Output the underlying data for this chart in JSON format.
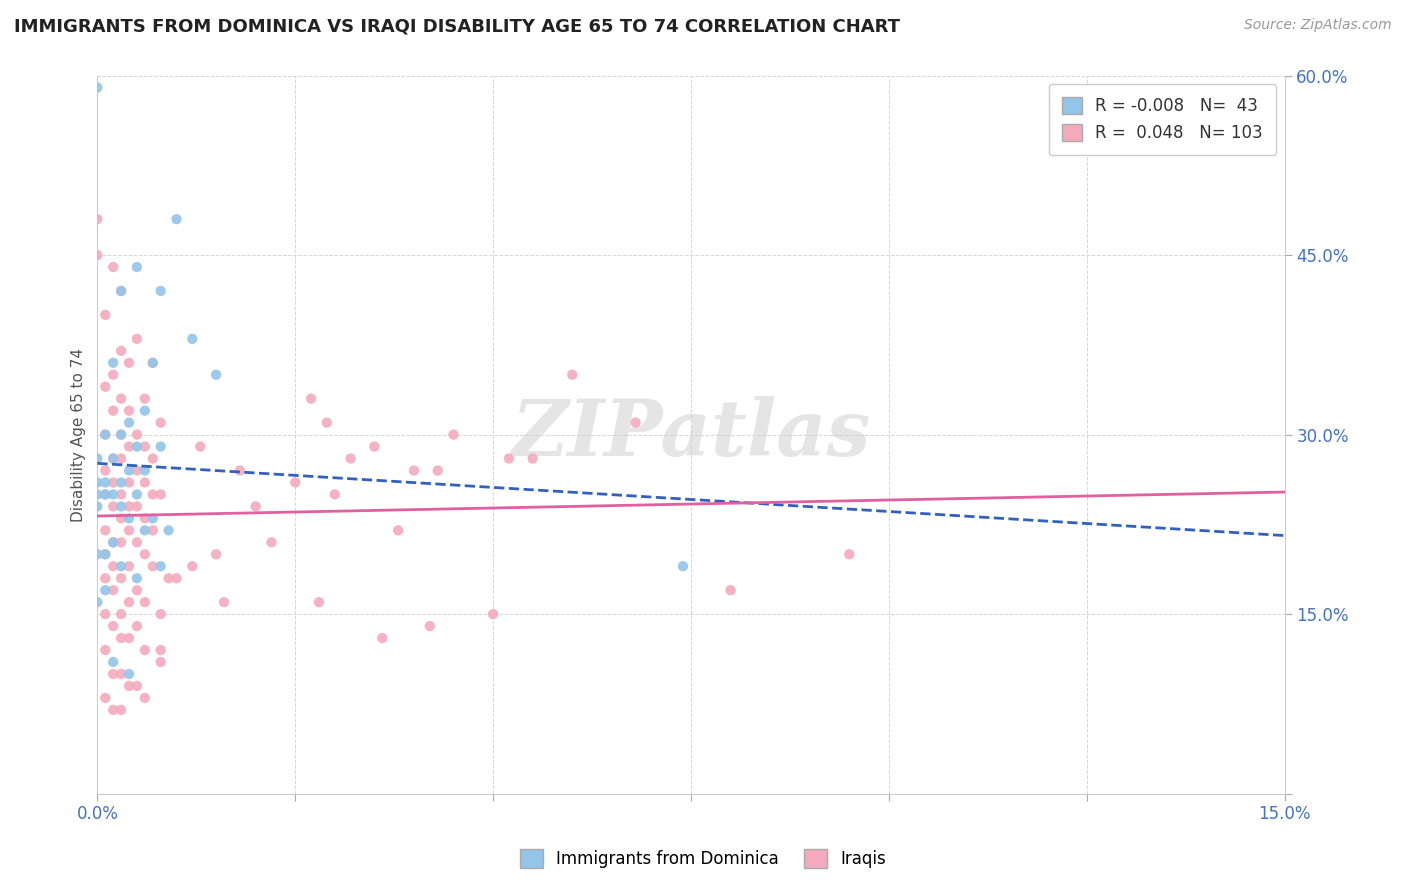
{
  "title": "IMMIGRANTS FROM DOMINICA VS IRAQI DISABILITY AGE 65 TO 74 CORRELATION CHART",
  "source_text": "Source: ZipAtlas.com",
  "ylabel": "Disability Age 65 to 74",
  "xlim": [
    0.0,
    0.15
  ],
  "ylim": [
    0.0,
    0.6
  ],
  "blue_R": -0.008,
  "blue_N": 43,
  "pink_R": 0.048,
  "pink_N": 103,
  "blue_color": "#92C5E8",
  "pink_color": "#F4AABC",
  "blue_line_color": "#3060C0",
  "pink_line_color": "#E060A0",
  "watermark": "ZIPatlas",
  "legend_label_blue": "Immigrants from Dominica",
  "legend_label_pink": "Iraqis",
  "blue_scatter_x": [
    0.0,
    0.01,
    0.005,
    0.008,
    0.003,
    0.012,
    0.002,
    0.007,
    0.015,
    0.006,
    0.004,
    0.003,
    0.001,
    0.005,
    0.008,
    0.0,
    0.002,
    0.004,
    0.006,
    0.003,
    0.001,
    0.0,
    0.005,
    0.0,
    0.002,
    0.001,
    0.0,
    0.003,
    0.004,
    0.007,
    0.009,
    0.006,
    0.002,
    0.001,
    0.0,
    0.008,
    0.003,
    0.074,
    0.005,
    0.001,
    0.0,
    0.002,
    0.004
  ],
  "blue_scatter_y": [
    0.59,
    0.48,
    0.44,
    0.42,
    0.42,
    0.38,
    0.36,
    0.36,
    0.35,
    0.32,
    0.31,
    0.3,
    0.3,
    0.29,
    0.29,
    0.28,
    0.28,
    0.27,
    0.27,
    0.26,
    0.26,
    0.26,
    0.25,
    0.25,
    0.25,
    0.25,
    0.24,
    0.24,
    0.23,
    0.23,
    0.22,
    0.22,
    0.21,
    0.2,
    0.2,
    0.19,
    0.19,
    0.19,
    0.18,
    0.17,
    0.16,
    0.11,
    0.1
  ],
  "pink_scatter_x": [
    0.0,
    0.0,
    0.002,
    0.003,
    0.001,
    0.005,
    0.003,
    0.004,
    0.007,
    0.002,
    0.001,
    0.003,
    0.006,
    0.004,
    0.002,
    0.008,
    0.005,
    0.003,
    0.001,
    0.006,
    0.004,
    0.002,
    0.007,
    0.003,
    0.001,
    0.005,
    0.002,
    0.004,
    0.006,
    0.003,
    0.001,
    0.008,
    0.005,
    0.002,
    0.004,
    0.006,
    0.003,
    0.001,
    0.007,
    0.004,
    0.002,
    0.005,
    0.003,
    0.001,
    0.006,
    0.004,
    0.002,
    0.007,
    0.003,
    0.001,
    0.005,
    0.002,
    0.004,
    0.006,
    0.003,
    0.008,
    0.001,
    0.005,
    0.002,
    0.004,
    0.003,
    0.006,
    0.001,
    0.008,
    0.003,
    0.002,
    0.005,
    0.004,
    0.001,
    0.006,
    0.003,
    0.002,
    0.068,
    0.055,
    0.04,
    0.035,
    0.03,
    0.025,
    0.06,
    0.045,
    0.038,
    0.032,
    0.027,
    0.02,
    0.015,
    0.012,
    0.009,
    0.08,
    0.05,
    0.042,
    0.036,
    0.028,
    0.022,
    0.018,
    0.013,
    0.01,
    0.007,
    0.095,
    0.043,
    0.016,
    0.008,
    0.052,
    0.029
  ],
  "pink_scatter_y": [
    0.48,
    0.45,
    0.44,
    0.42,
    0.4,
    0.38,
    0.37,
    0.36,
    0.36,
    0.35,
    0.34,
    0.33,
    0.33,
    0.32,
    0.32,
    0.31,
    0.3,
    0.3,
    0.3,
    0.29,
    0.29,
    0.28,
    0.28,
    0.28,
    0.27,
    0.27,
    0.26,
    0.26,
    0.26,
    0.25,
    0.25,
    0.25,
    0.24,
    0.24,
    0.24,
    0.23,
    0.23,
    0.22,
    0.22,
    0.22,
    0.21,
    0.21,
    0.21,
    0.2,
    0.2,
    0.19,
    0.19,
    0.19,
    0.18,
    0.18,
    0.17,
    0.17,
    0.16,
    0.16,
    0.15,
    0.15,
    0.15,
    0.14,
    0.14,
    0.13,
    0.13,
    0.12,
    0.12,
    0.11,
    0.1,
    0.1,
    0.09,
    0.09,
    0.08,
    0.08,
    0.07,
    0.07,
    0.31,
    0.28,
    0.27,
    0.29,
    0.25,
    0.26,
    0.35,
    0.3,
    0.22,
    0.28,
    0.33,
    0.24,
    0.2,
    0.19,
    0.18,
    0.17,
    0.15,
    0.14,
    0.13,
    0.16,
    0.21,
    0.27,
    0.29,
    0.18,
    0.25,
    0.2,
    0.27,
    0.16,
    0.12,
    0.28,
    0.31
  ]
}
